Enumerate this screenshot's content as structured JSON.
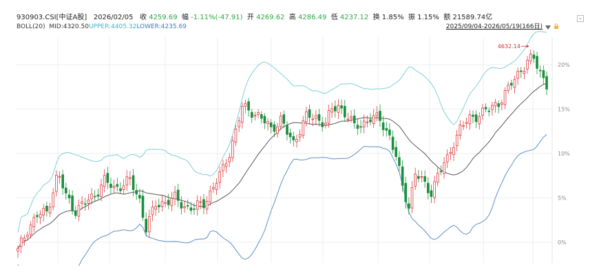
{
  "header": {
    "code": "930903.CSI[中证A股]",
    "date": "2026/02/05",
    "close_label": "收",
    "close": "4259.69",
    "change_label": "幅",
    "change": "-1.11%(-47.91)",
    "open_label": "开",
    "open": "4269.62",
    "high_label": "高",
    "high": "4286.49",
    "low_label": "低",
    "low": "4237.12",
    "turnover_label": "换",
    "turnover": "1.85%",
    "amp_label": "振",
    "amp": "1.15%",
    "amount_label": "额",
    "amount": "21589.74亿"
  },
  "indicator": {
    "name": "BOLL(20)",
    "mid": "MID:4320.50",
    "upper": "UPPER:4405.32",
    "lower": "LOWER:4235.69"
  },
  "range_label": "2025/09/04-2026/05/19(166日)",
  "peak_annotation": "4632.14",
  "y_axis": {
    "ticks": [
      "20%",
      "15%",
      "10%",
      "5%",
      "0%"
    ]
  },
  "colors": {
    "up": "#e0383d",
    "down": "#1a8f3c",
    "mid": "#555555",
    "upper": "#7ecfd6",
    "lower": "#5a8fc6",
    "header_change": "#2aa745",
    "header_high": "#2aa745",
    "indicator_upper": "#3fb6c3",
    "indicator_lower": "#3a7ac0"
  },
  "icons": [
    "dropdown-triangle-icon",
    "lock-icon",
    "corner-badge-icon"
  ]
}
